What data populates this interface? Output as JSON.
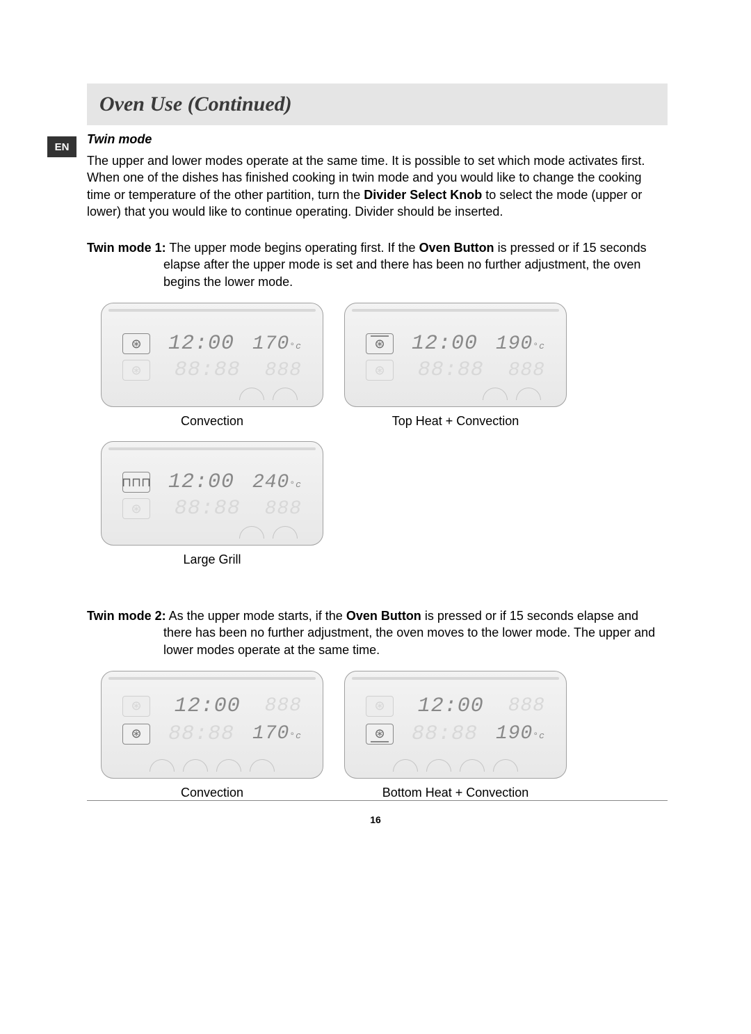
{
  "lang_badge": "EN",
  "title": "Oven Use (Continued)",
  "twin_mode": {
    "heading": "Twin mode",
    "intro_before_bold": "The upper and lower modes operate at the same time. It is possible to set which mode activates first. When one of the dishes has finished cooking in twin mode and you would like to change the cooking time or temperature of the other partition, turn the ",
    "intro_bold": "Divider Select Knob",
    "intro_after_bold": " to select the mode (upper or lower) that you would like to continue operating. Divider should be inserted."
  },
  "mode1": {
    "label": "Twin mode 1:",
    "text_before_bold": " The upper mode begins operating first. If the ",
    "bold": "Oven Button",
    "text_after_bold": " is pressed or if 15 seconds elapse after the upper mode is set and there has been no further adjustment, the oven begins the lower mode.",
    "panels": [
      {
        "upper": {
          "icon": "⊛",
          "time": "12:00",
          "temp": "170",
          "unit": "°c",
          "active": true
        },
        "lower": {
          "icon": "⊛",
          "time": "88:88",
          "temp": "888",
          "unit": "",
          "active": false
        },
        "knobs": 2,
        "knob_offset_right": true,
        "caption": "Convection"
      },
      {
        "upper": {
          "icon": "⊛",
          "time": "12:00",
          "temp": "190",
          "unit": "°c",
          "active": true,
          "icon_overline": true
        },
        "lower": {
          "icon": "⊛",
          "time": "88:88",
          "temp": "888",
          "unit": "",
          "active": false
        },
        "knobs": 2,
        "knob_offset_right": true,
        "caption": "Top Heat + Convection"
      },
      {
        "upper": {
          "icon": "⊓⊓⊓",
          "time": "12:00",
          "temp": "240",
          "unit": "°c",
          "active": true
        },
        "lower": {
          "icon": "⊛",
          "time": "88:88",
          "temp": "888",
          "unit": "",
          "active": false
        },
        "knobs": 2,
        "knob_offset_right": true,
        "caption": "Large Grill"
      }
    ]
  },
  "mode2": {
    "label": "Twin mode 2:",
    "text_before_bold": " As the upper mode starts, if the ",
    "bold": "Oven Button",
    "text_after_bold": " is pressed or if 15 seconds elapse and there has been no further adjustment, the oven moves to the lower mode. The upper and lower modes operate at the same time.",
    "panels": [
      {
        "upper": {
          "icon": "⊛",
          "time": "12:00",
          "temp": "888",
          "unit": "",
          "active": false,
          "time_active": true
        },
        "lower": {
          "icon": "⊛",
          "time": "88:88",
          "temp": "170",
          "unit": "°c",
          "active": true,
          "time_active": false
        },
        "knobs": 4,
        "caption": "Convection"
      },
      {
        "upper": {
          "icon": "⊛",
          "time": "12:00",
          "temp": "888",
          "unit": "",
          "active": false,
          "time_active": true
        },
        "lower": {
          "icon": "⊛",
          "time": "88:88",
          "temp": "190",
          "unit": "°c",
          "active": true,
          "time_active": false,
          "icon_underline": true
        },
        "knobs": 4,
        "caption": "Bottom Heat + Convection"
      }
    ]
  },
  "page_number": "16"
}
